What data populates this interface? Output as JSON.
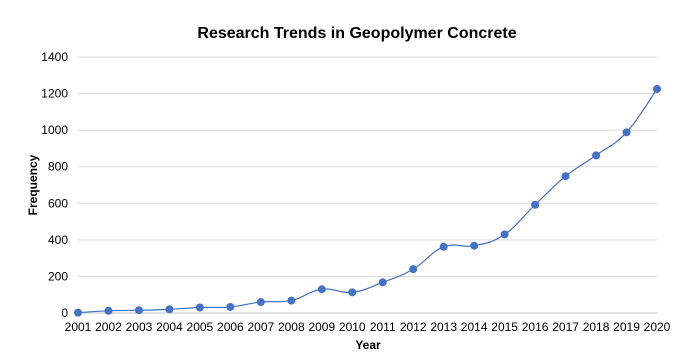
{
  "chart_data": {
    "type": "line",
    "title": "Research Trends in Geopolymer Concrete",
    "xlabel": "Year",
    "ylabel": "Frequency",
    "ylim": [
      0,
      1400
    ],
    "yticks": [
      0,
      200,
      400,
      600,
      800,
      1000,
      1200,
      1400
    ],
    "grid": true,
    "legend": "none",
    "categories": [
      "2001",
      "2002",
      "2003",
      "2004",
      "2005",
      "2006",
      "2007",
      "2008",
      "2009",
      "2010",
      "2011",
      "2012",
      "2013",
      "2014",
      "2015",
      "2016",
      "2017",
      "2018",
      "2019",
      "2020"
    ],
    "series": [
      {
        "color": "#4472c4",
        "values": [
          2,
          12,
          15,
          20,
          30,
          33,
          60,
          68,
          130,
          113,
          168,
          240,
          362,
          368,
          430,
          592,
          748,
          862,
          988,
          1225
        ]
      }
    ]
  }
}
